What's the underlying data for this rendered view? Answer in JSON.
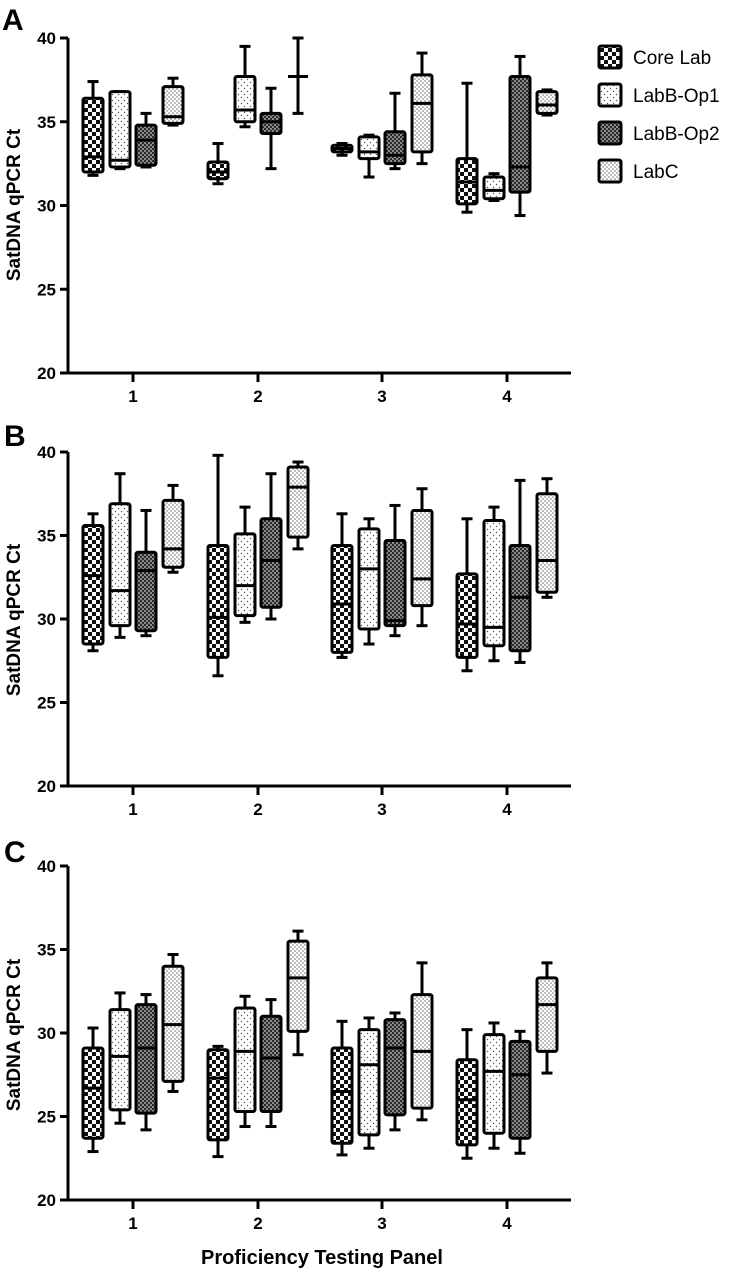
{
  "figure": {
    "xlabel": "Proficiency Testing Panel"
  },
  "legend": [
    {
      "name": "Core Lab",
      "pattern": "checker"
    },
    {
      "name": "LabB-Op1",
      "pattern": "dots-sparse"
    },
    {
      "name": "LabB-Op2",
      "pattern": "dense"
    },
    {
      "name": "LabC",
      "pattern": "dots-dense"
    }
  ],
  "chart_data": [
    {
      "panel": "A",
      "type": "box",
      "ylabel": "SatDNA qPCR Ct",
      "ylim": [
        20,
        40
      ],
      "yticks": [
        20,
        25,
        30,
        35,
        40
      ],
      "categories": [
        "1",
        "2",
        "3",
        "4"
      ],
      "series": [
        {
          "name": "Core Lab",
          "boxes": [
            {
              "min": 31.8,
              "q1": 32.0,
              "median": 32.9,
              "q3": 36.4,
              "max": 37.4
            },
            {
              "min": 31.3,
              "q1": 31.6,
              "median": 32.0,
              "q3": 32.6,
              "max": 33.7
            },
            {
              "min": 33.0,
              "q1": 33.2,
              "median": 33.4,
              "q3": 33.6,
              "max": 33.7
            },
            {
              "min": 29.6,
              "q1": 30.1,
              "median": 31.4,
              "q3": 32.8,
              "max": 37.3
            }
          ]
        },
        {
          "name": "LabB-Op1",
          "boxes": [
            {
              "min": 32.2,
              "q1": 32.3,
              "median": 32.7,
              "q3": 36.8,
              "max": 36.8
            },
            {
              "min": 34.7,
              "q1": 35.0,
              "median": 35.7,
              "q3": 37.7,
              "max": 39.5
            },
            {
              "min": 31.7,
              "q1": 32.8,
              "median": 33.2,
              "q3": 34.1,
              "max": 34.2
            },
            {
              "min": 30.3,
              "q1": 30.4,
              "median": 30.9,
              "q3": 31.7,
              "max": 31.9
            }
          ]
        },
        {
          "name": "LabB-Op2",
          "boxes": [
            {
              "min": 32.3,
              "q1": 32.4,
              "median": 33.9,
              "q3": 34.8,
              "max": 35.5
            },
            {
              "min": 32.2,
              "q1": 34.3,
              "median": 35.0,
              "q3": 35.5,
              "max": 37.0
            },
            {
              "min": 32.2,
              "q1": 32.5,
              "median": 33.0,
              "q3": 34.4,
              "max": 36.7
            },
            {
              "min": 29.4,
              "q1": 30.8,
              "median": 32.3,
              "q3": 37.7,
              "max": 38.9
            }
          ]
        },
        {
          "name": "LabC",
          "boxes": [
            {
              "min": 34.8,
              "q1": 34.9,
              "median": 35.3,
              "q3": 37.1,
              "max": 37.6
            },
            {
              "min": 35.5,
              "q1": 37.7,
              "median": 37.7,
              "q3": 37.7,
              "max": 40.0
            },
            {
              "min": 32.5,
              "q1": 33.2,
              "median": 36.1,
              "q3": 37.8,
              "max": 39.1
            },
            {
              "min": 35.4,
              "q1": 35.5,
              "median": 36.0,
              "q3": 36.8,
              "max": 36.9
            }
          ]
        }
      ]
    },
    {
      "panel": "B",
      "type": "box",
      "ylabel": "SatDNA qPCR Ct",
      "ylim": [
        20,
        40
      ],
      "yticks": [
        20,
        25,
        30,
        35,
        40
      ],
      "categories": [
        "1",
        "2",
        "3",
        "4"
      ],
      "series": [
        {
          "name": "Core Lab",
          "boxes": [
            {
              "min": 28.1,
              "q1": 28.5,
              "median": 32.6,
              "q3": 35.6,
              "max": 36.3
            },
            {
              "min": 26.6,
              "q1": 27.7,
              "median": 30.1,
              "q3": 34.4,
              "max": 39.8
            },
            {
              "min": 27.7,
              "q1": 28.0,
              "median": 30.9,
              "q3": 34.4,
              "max": 36.3
            },
            {
              "min": 26.9,
              "q1": 27.7,
              "median": 29.7,
              "q3": 32.7,
              "max": 36.0
            }
          ]
        },
        {
          "name": "LabB-Op1",
          "boxes": [
            {
              "min": 28.9,
              "q1": 29.6,
              "median": 31.7,
              "q3": 36.9,
              "max": 38.7
            },
            {
              "min": 29.8,
              "q1": 30.2,
              "median": 32.0,
              "q3": 35.1,
              "max": 36.7
            },
            {
              "min": 28.5,
              "q1": 29.4,
              "median": 33.0,
              "q3": 35.4,
              "max": 36.0
            },
            {
              "min": 27.5,
              "q1": 28.4,
              "median": 29.5,
              "q3": 35.9,
              "max": 36.7
            }
          ]
        },
        {
          "name": "LabB-Op2",
          "boxes": [
            {
              "min": 29.0,
              "q1": 29.3,
              "median": 32.9,
              "q3": 34.0,
              "max": 36.5
            },
            {
              "min": 30.0,
              "q1": 30.7,
              "median": 33.5,
              "q3": 36.0,
              "max": 38.7
            },
            {
              "min": 29.0,
              "q1": 29.6,
              "median": 29.9,
              "q3": 34.7,
              "max": 36.8
            },
            {
              "min": 27.4,
              "q1": 28.1,
              "median": 31.3,
              "q3": 34.4,
              "max": 38.3
            }
          ]
        },
        {
          "name": "LabC",
          "boxes": [
            {
              "min": 32.8,
              "q1": 33.1,
              "median": 34.2,
              "q3": 37.1,
              "max": 38.0
            },
            {
              "min": 34.2,
              "q1": 34.9,
              "median": 37.9,
              "q3": 39.1,
              "max": 39.4
            },
            {
              "min": 29.6,
              "q1": 30.8,
              "median": 32.4,
              "q3": 36.5,
              "max": 37.8
            },
            {
              "min": 31.3,
              "q1": 31.6,
              "median": 33.5,
              "q3": 37.5,
              "max": 38.4
            }
          ]
        }
      ]
    },
    {
      "panel": "C",
      "type": "box",
      "ylabel": "SatDNA qPCR Ct",
      "ylim": [
        20,
        40
      ],
      "yticks": [
        20,
        25,
        30,
        35,
        40
      ],
      "categories": [
        "1",
        "2",
        "3",
        "4"
      ],
      "series": [
        {
          "name": "Core Lab",
          "boxes": [
            {
              "min": 22.9,
              "q1": 23.7,
              "median": 26.7,
              "q3": 29.1,
              "max": 30.3
            },
            {
              "min": 22.6,
              "q1": 23.6,
              "median": 27.3,
              "q3": 29.0,
              "max": 29.2
            },
            {
              "min": 22.7,
              "q1": 23.4,
              "median": 26.5,
              "q3": 29.1,
              "max": 30.7
            },
            {
              "min": 22.5,
              "q1": 23.3,
              "median": 26.0,
              "q3": 28.4,
              "max": 30.2
            }
          ]
        },
        {
          "name": "LabB-Op1",
          "boxes": [
            {
              "min": 24.6,
              "q1": 25.4,
              "median": 28.6,
              "q3": 31.4,
              "max": 32.4
            },
            {
              "min": 24.4,
              "q1": 25.3,
              "median": 28.9,
              "q3": 31.5,
              "max": 32.2
            },
            {
              "min": 23.1,
              "q1": 23.9,
              "median": 28.1,
              "q3": 30.2,
              "max": 30.9
            },
            {
              "min": 23.1,
              "q1": 24.0,
              "median": 27.7,
              "q3": 29.9,
              "max": 30.6
            }
          ]
        },
        {
          "name": "LabB-Op2",
          "boxes": [
            {
              "min": 24.2,
              "q1": 25.2,
              "median": 29.1,
              "q3": 31.7,
              "max": 32.3
            },
            {
              "min": 24.4,
              "q1": 25.3,
              "median": 28.5,
              "q3": 31.0,
              "max": 32.0
            },
            {
              "min": 24.2,
              "q1": 25.1,
              "median": 29.1,
              "q3": 30.8,
              "max": 31.2
            },
            {
              "min": 22.8,
              "q1": 23.7,
              "median": 27.5,
              "q3": 29.5,
              "max": 30.1
            }
          ]
        },
        {
          "name": "LabC",
          "boxes": [
            {
              "min": 26.5,
              "q1": 27.1,
              "median": 30.5,
              "q3": 34.0,
              "max": 34.7
            },
            {
              "min": 28.7,
              "q1": 30.1,
              "median": 33.3,
              "q3": 35.5,
              "max": 36.1
            },
            {
              "min": 24.8,
              "q1": 25.5,
              "median": 28.9,
              "q3": 32.3,
              "max": 34.2
            },
            {
              "min": 27.6,
              "q1": 28.9,
              "median": 31.7,
              "q3": 33.3,
              "max": 34.2
            }
          ]
        }
      ]
    }
  ]
}
